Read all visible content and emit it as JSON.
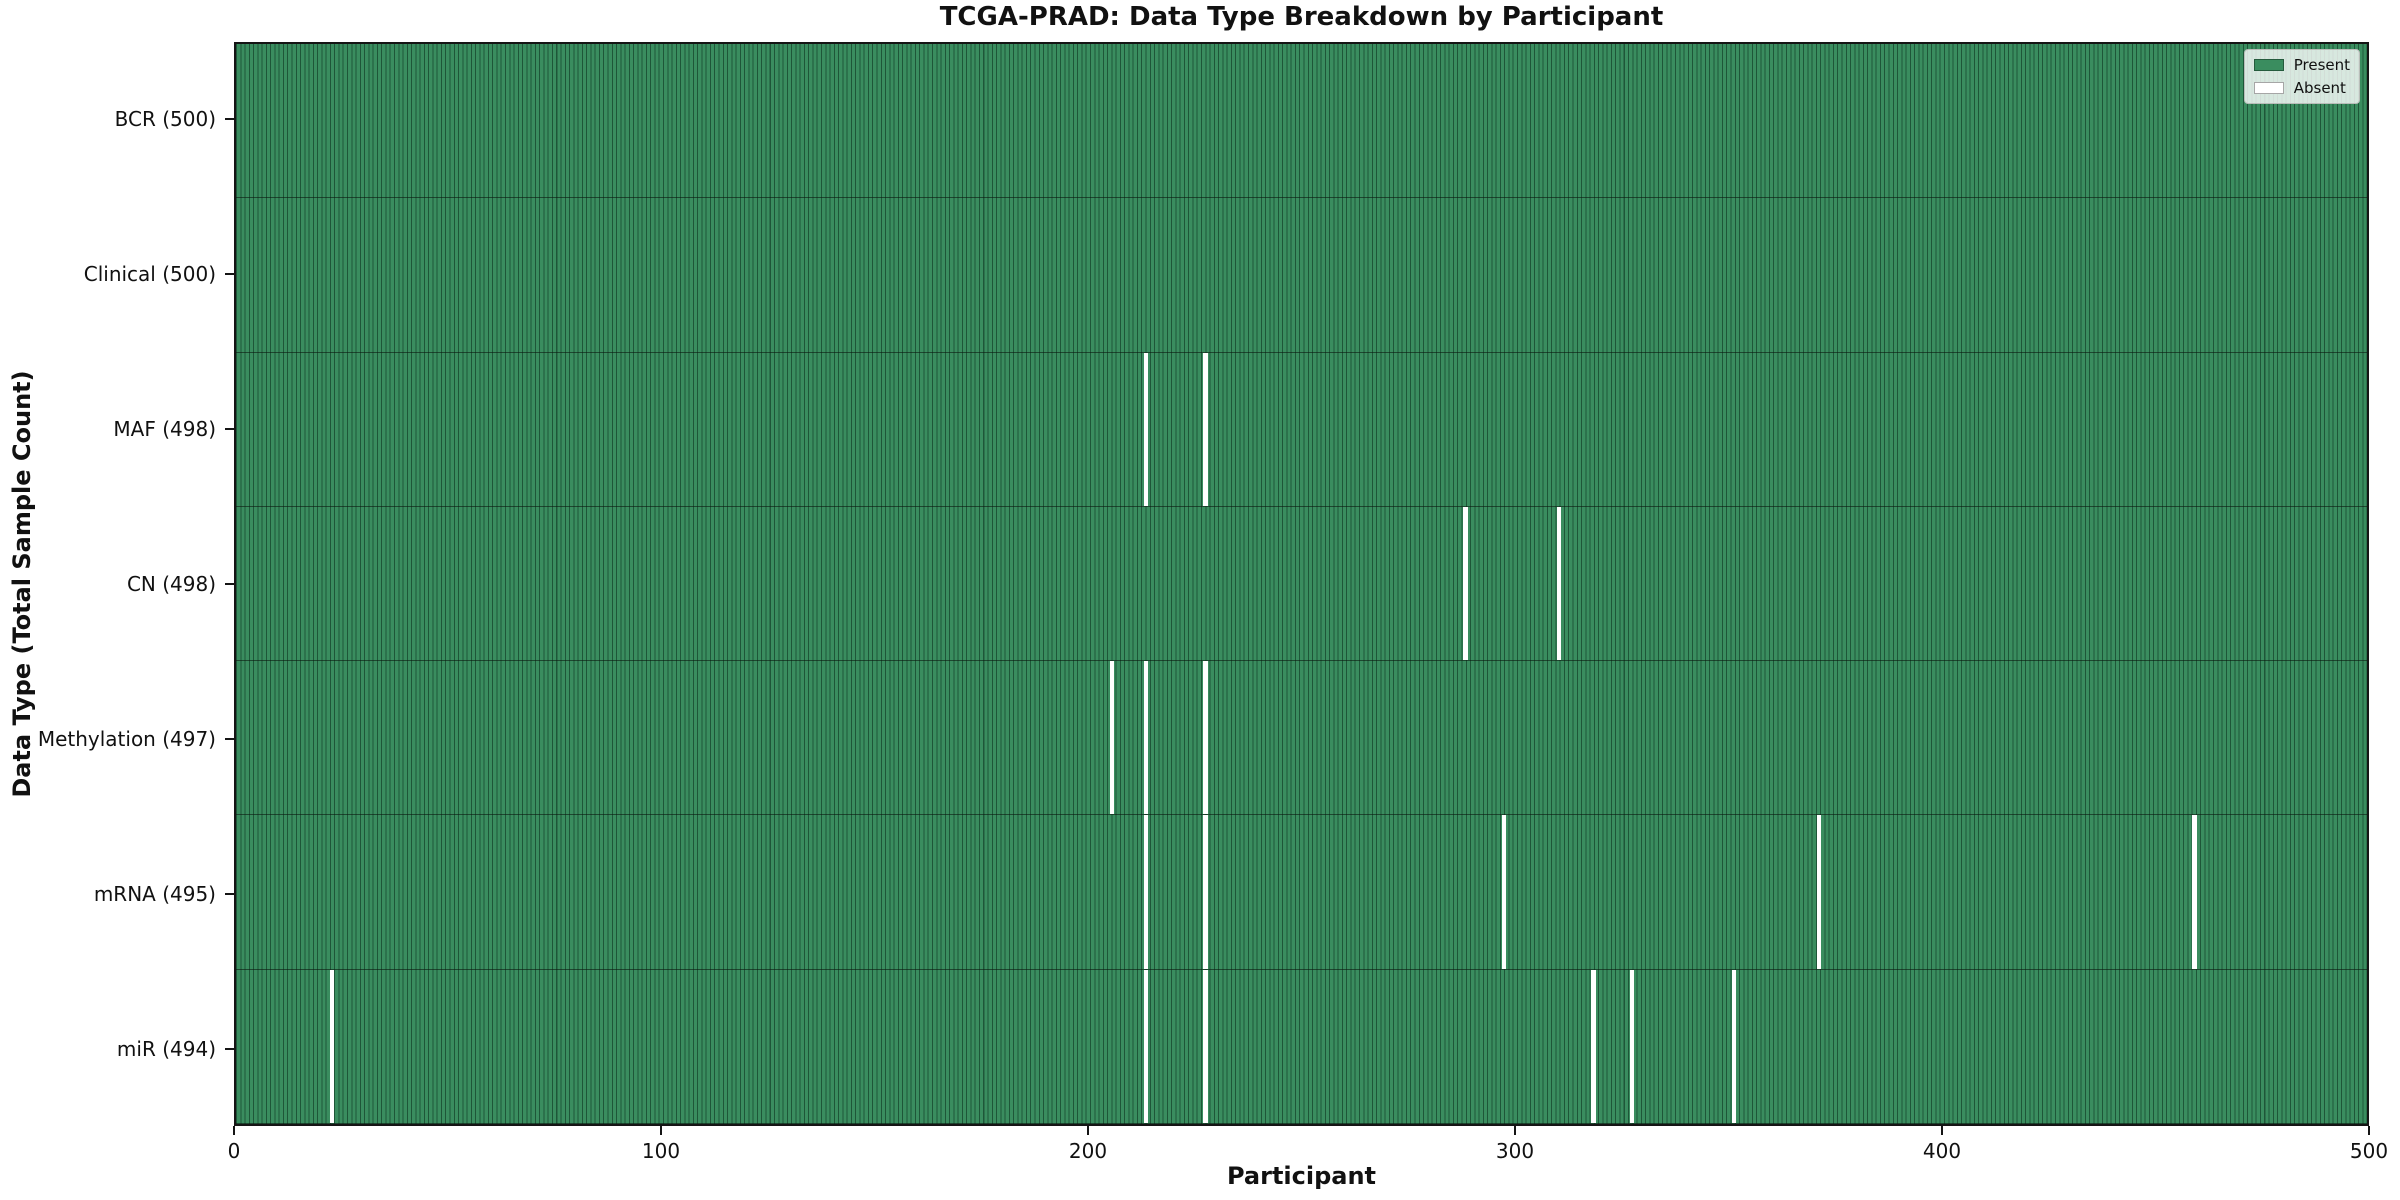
{
  "chart_data": {
    "type": "heatmap",
    "title": "TCGA-PRAD: Data Type Breakdown by Participant",
    "xlabel": "Participant",
    "ylabel": "Data Type (Total Sample Count)",
    "x_range": [
      0,
      500
    ],
    "x_ticks": [
      0,
      100,
      200,
      300,
      400,
      500
    ],
    "n_participants": 500,
    "grid": false,
    "legend_position": "upper right",
    "legend": [
      {
        "label": "Present",
        "color": "#3a8d5f"
      },
      {
        "label": "Absent",
        "color": "#ffffff"
      }
    ],
    "colors": {
      "present_fill": "#3a8d5f",
      "bar_edge": "#1e5638",
      "absent": "#ffffff",
      "row_divider": "rgba(10,25,15,0.6)"
    },
    "rows": [
      {
        "name": "BCR",
        "label": "BCR (500)",
        "count": 500,
        "absent_participants": []
      },
      {
        "name": "Clinical",
        "label": "Clinical (500)",
        "count": 500,
        "absent_participants": []
      },
      {
        "name": "MAF",
        "label": "MAF (498)",
        "count": 498,
        "absent_participants": [
          213,
          227
        ]
      },
      {
        "name": "CN",
        "label": "CN (498)",
        "count": 498,
        "absent_participants": [
          288,
          310
        ]
      },
      {
        "name": "Methylation",
        "label": "Methylation (497)",
        "count": 497,
        "absent_participants": [
          205,
          213,
          227
        ]
      },
      {
        "name": "mRNA",
        "label": "mRNA (495)",
        "count": 495,
        "absent_participants": [
          213,
          227,
          297,
          371,
          459
        ]
      },
      {
        "name": "miR",
        "label": "miR (494)",
        "count": 494,
        "absent_participants": [
          22,
          213,
          227,
          318,
          327,
          351
        ]
      }
    ]
  }
}
